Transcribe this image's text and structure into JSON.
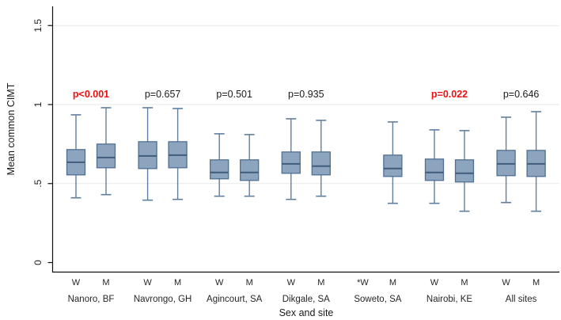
{
  "figure": {
    "background": "#ffffff"
  },
  "chart_data": {
    "type": "boxplot",
    "title": "",
    "xlabel": "Sex and site",
    "ylabel": "Mean common CIMT",
    "ylim": [
      0,
      1.5
    ],
    "grid": "horizontal light lines at 0.5, 1.0 and 1.5; none at 0; no legend",
    "yticks": [
      {
        "value": 0,
        "label": "0"
      },
      {
        "value": 0.5,
        "label": ".5"
      },
      {
        "value": 1,
        "label": "1"
      },
      {
        "value": 1.5,
        "label": "1.5"
      }
    ],
    "colors": {
      "box_fill": "#8ca4bd",
      "box_border": "#4f6f94",
      "median": "#3f5c7c",
      "whisker": "#5f7fa0",
      "grid": "#e7e7e7",
      "axis": "#111111",
      "p_significant": "#ee1111",
      "text": "#1a1a1a"
    },
    "groups": [
      {
        "site": "Nanoro, BF",
        "p_label": "p<0.001",
        "p_significant": true,
        "boxes": [
          {
            "sex_label": "W",
            "whisker_low": 0.41,
            "q1": 0.555,
            "median": 0.635,
            "q3": 0.715,
            "whisker_high": 0.935
          },
          {
            "sex_label": "M",
            "whisker_low": 0.43,
            "q1": 0.6,
            "median": 0.665,
            "q3": 0.75,
            "whisker_high": 0.98
          }
        ]
      },
      {
        "site": "Navrongo, GH",
        "p_label": "p=0.657",
        "p_significant": false,
        "boxes": [
          {
            "sex_label": "W",
            "whisker_low": 0.395,
            "q1": 0.595,
            "median": 0.675,
            "q3": 0.765,
            "whisker_high": 0.98
          },
          {
            "sex_label": "M",
            "whisker_low": 0.4,
            "q1": 0.6,
            "median": 0.68,
            "q3": 0.765,
            "whisker_high": 0.975
          }
        ]
      },
      {
        "site": "Agincourt, SA",
        "p_label": "p=0.501",
        "p_significant": false,
        "boxes": [
          {
            "sex_label": "W",
            "whisker_low": 0.42,
            "q1": 0.53,
            "median": 0.57,
            "q3": 0.65,
            "whisker_high": 0.815
          },
          {
            "sex_label": "M",
            "whisker_low": 0.42,
            "q1": 0.52,
            "median": 0.57,
            "q3": 0.65,
            "whisker_high": 0.81
          }
        ]
      },
      {
        "site": "Dikgale, SA",
        "p_label": "p=0.935",
        "p_significant": false,
        "boxes": [
          {
            "sex_label": "W",
            "whisker_low": 0.4,
            "q1": 0.565,
            "median": 0.625,
            "q3": 0.7,
            "whisker_high": 0.91
          },
          {
            "sex_label": "M",
            "whisker_low": 0.42,
            "q1": 0.555,
            "median": 0.61,
            "q3": 0.7,
            "whisker_high": 0.9
          }
        ]
      },
      {
        "site": "Soweto, SA",
        "p_label": "",
        "p_significant": false,
        "boxes": [
          {
            "sex_label": "*W",
            "no_data": true,
            "whisker_low": null,
            "q1": null,
            "median": null,
            "q3": null,
            "whisker_high": null
          },
          {
            "sex_label": "M",
            "whisker_low": 0.375,
            "q1": 0.545,
            "median": 0.595,
            "q3": 0.68,
            "whisker_high": 0.89
          }
        ]
      },
      {
        "site": "Nairobi, KE",
        "p_label": "p=0.022",
        "p_significant": true,
        "boxes": [
          {
            "sex_label": "W",
            "whisker_low": 0.375,
            "q1": 0.52,
            "median": 0.57,
            "q3": 0.655,
            "whisker_high": 0.84
          },
          {
            "sex_label": "M",
            "whisker_low": 0.325,
            "q1": 0.51,
            "median": 0.565,
            "q3": 0.65,
            "whisker_high": 0.835
          }
        ]
      },
      {
        "site": "All sites",
        "p_label": "p=0.646",
        "p_significant": false,
        "boxes": [
          {
            "sex_label": "W",
            "whisker_low": 0.38,
            "q1": 0.55,
            "median": 0.625,
            "q3": 0.71,
            "whisker_high": 0.92
          },
          {
            "sex_label": "M",
            "whisker_low": 0.325,
            "q1": 0.545,
            "median": 0.625,
            "q3": 0.71,
            "whisker_high": 0.955
          }
        ]
      }
    ]
  }
}
